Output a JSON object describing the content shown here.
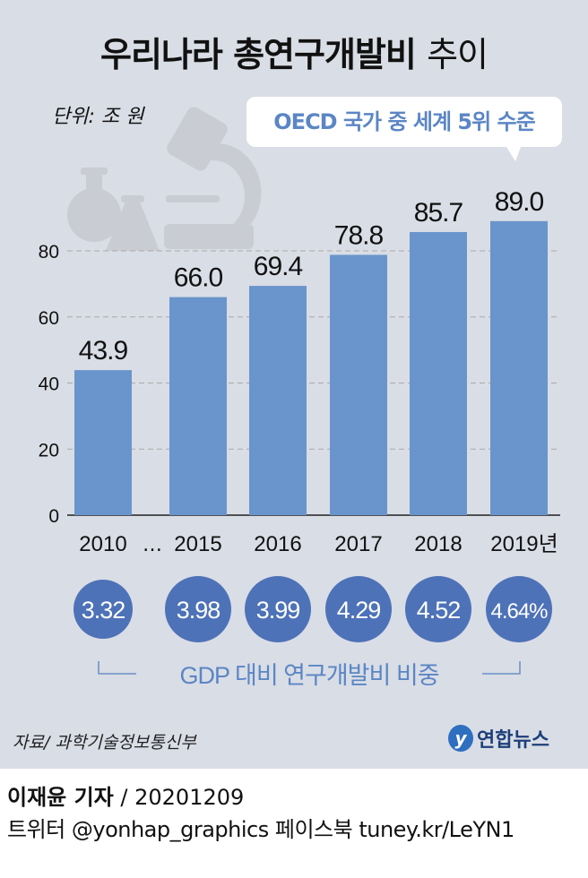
{
  "title_main": "우리나라 총연구개발비",
  "title_suffix": "추이",
  "unit": "단위: 조 원",
  "callout": "OECD 국가 중 세계 5위 수준",
  "chart_data": {
    "type": "bar",
    "categories": [
      "2010",
      "2015",
      "2016",
      "2017",
      "2018",
      "2019년"
    ],
    "gap_label": "…",
    "values": [
      43.9,
      66.0,
      69.4,
      78.8,
      85.7,
      89.0
    ],
    "value_labels": [
      "43.9",
      "66.0",
      "69.4",
      "78.8",
      "85.7",
      "89.0"
    ],
    "yticks": [
      "0",
      "20",
      "40",
      "60",
      "80"
    ],
    "ylim": [
      0,
      95
    ],
    "grid": true,
    "bar_color": "#6a95cc",
    "gdp_ratio": {
      "label": "GDP 대비 연구개발비 비중",
      "values": [
        "3.32",
        "3.98",
        "3.99",
        "4.29",
        "4.52",
        "4.64%"
      ],
      "color": "#4e72b8"
    }
  },
  "source": "자료/ 과학기술정보통신부",
  "logo": "연합뉴스",
  "footer": {
    "reporter": "이재윤 기자",
    "date": " / 20201209",
    "social": "트위터 @yonhap_graphics  페이스북 tuney.kr/LeYN1"
  }
}
